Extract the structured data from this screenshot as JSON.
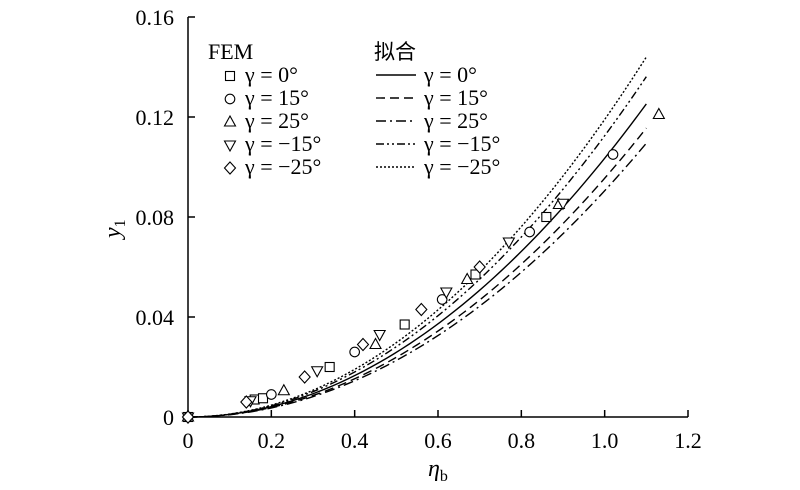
{
  "chart_data": {
    "type": "scatter",
    "xlabel": "η",
    "xlabel_sub": "b",
    "ylabel": "y",
    "ylabel_sub": "1",
    "xlim": [
      0,
      1.2
    ],
    "ylim": [
      0,
      0.16
    ],
    "xticks": [
      0,
      0.2,
      0.4,
      0.6,
      0.8,
      1.0,
      1.2
    ],
    "xtick_labels": [
      "0",
      "0.2",
      "0.4",
      "0.6",
      "0.8",
      "1.0",
      "1.2"
    ],
    "yticks": [
      0,
      0.04,
      0.08,
      0.12,
      0.16
    ],
    "ytick_labels": [
      "0",
      "0.04",
      "0.08",
      "0.12",
      "0.16"
    ],
    "legend": {
      "placement": "top-left",
      "group_fem_title": "FEM",
      "group_fit_title": "拟合"
    },
    "fem_series": [
      {
        "name": "γ = 0°",
        "marker": "square",
        "points": [
          [
            0,
            0
          ],
          [
            0.16,
            0.007
          ],
          [
            0.18,
            0.0075
          ],
          [
            0.34,
            0.02
          ],
          [
            0.52,
            0.037
          ],
          [
            0.69,
            0.057
          ],
          [
            0.86,
            0.08
          ]
        ]
      },
      {
        "name": "γ = 15°",
        "marker": "circle",
        "points": [
          [
            0,
            0
          ],
          [
            0.2,
            0.009
          ],
          [
            0.4,
            0.026
          ],
          [
            0.61,
            0.047
          ],
          [
            0.82,
            0.074
          ],
          [
            1.02,
            0.105
          ]
        ]
      },
      {
        "name": "γ = 25°",
        "marker": "triangle-up",
        "points": [
          [
            0,
            0
          ],
          [
            0.23,
            0.0105
          ],
          [
            0.45,
            0.029
          ],
          [
            0.67,
            0.055
          ],
          [
            0.89,
            0.085
          ],
          [
            1.13,
            0.121
          ]
        ]
      },
      {
        "name": "γ = −15°",
        "marker": "triangle-down",
        "points": [
          [
            0,
            0
          ],
          [
            0.15,
            0.0065
          ],
          [
            0.31,
            0.0185
          ],
          [
            0.46,
            0.033
          ],
          [
            0.62,
            0.05
          ],
          [
            0.77,
            0.07
          ],
          [
            0.9,
            0.0855
          ]
        ]
      },
      {
        "name": "γ = −25°",
        "marker": "diamond",
        "points": [
          [
            0,
            0
          ],
          [
            0.14,
            0.006
          ],
          [
            0.28,
            0.016
          ],
          [
            0.42,
            0.029
          ],
          [
            0.56,
            0.043
          ],
          [
            0.7,
            0.06
          ]
        ]
      }
    ],
    "fit_series": [
      {
        "name": "γ = 0°",
        "dash": "solid",
        "coef": 0.1035
      },
      {
        "name": "γ = 15°",
        "dash": "dashed",
        "coef": 0.0955
      },
      {
        "name": "γ = 25°",
        "dash": "dashdot",
        "coef": 0.0905
      },
      {
        "name": "γ = −15°",
        "dash": "dashdotdot",
        "coef": 0.1125
      },
      {
        "name": "γ = −25°",
        "dash": "dotted",
        "coef": 0.119
      }
    ],
    "fit_x_max": 1.1
  }
}
